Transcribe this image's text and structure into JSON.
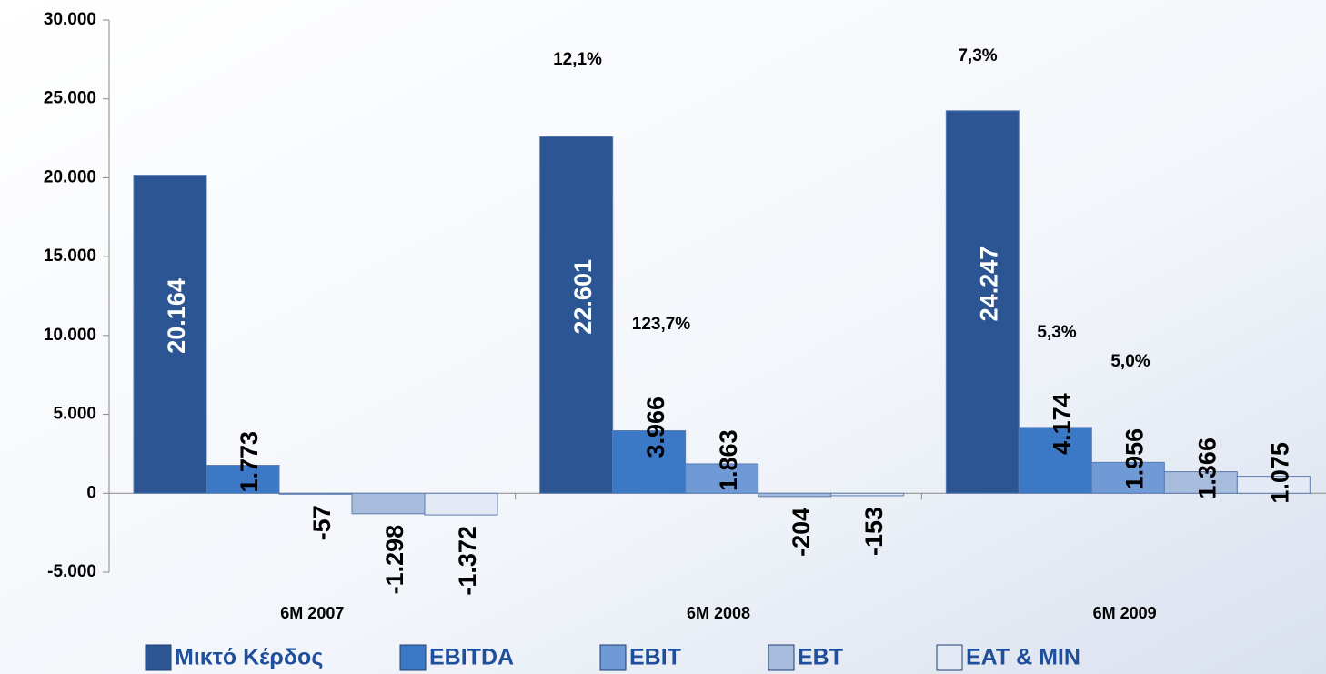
{
  "chart_data": {
    "type": "bar",
    "categories": [
      "6M 2007",
      "6M 2008",
      "6M 2009"
    ],
    "series": [
      {
        "name": "Μικτό Κέρδος",
        "color": "#2b5693",
        "values": [
          20164,
          22601,
          24247
        ],
        "value_labels": [
          "20.164",
          "22.601",
          "24.247"
        ]
      },
      {
        "name": "EBITDA",
        "color": "#3b79c6",
        "values": [
          1773,
          3966,
          4174
        ],
        "value_labels": [
          "1.773",
          "3.966",
          "4.174"
        ]
      },
      {
        "name": "EBIT",
        "color": "#6f9ad6",
        "values": [
          -57,
          1863,
          1956
        ],
        "value_labels": [
          "-57",
          "1.863",
          "1.956"
        ]
      },
      {
        "name": "EBT",
        "color": "#a8bddd",
        "values": [
          -1298,
          -204,
          1366
        ],
        "value_labels": [
          "-1.298",
          "-204",
          "1.366"
        ]
      },
      {
        "name": "EAT & MIN",
        "color": "#e3eaf5",
        "values": [
          -1372,
          -153,
          1075
        ],
        "value_labels": [
          "-1.372",
          "-153",
          "1.075"
        ]
      }
    ],
    "annotations": [
      "12,1%",
      "7,3%",
      "123,7%",
      "5,3%",
      "5,0%"
    ],
    "ylim": [
      -5000,
      30000
    ],
    "yticks": [
      {
        "value": -5000,
        "label": "-5.000"
      },
      0,
      {
        "value": 5000,
        "label": "5.000"
      },
      {
        "value": 10000,
        "label": "10.000"
      },
      {
        "value": 15000,
        "label": "15.000"
      },
      {
        "value": 20000,
        "label": "20.000"
      },
      {
        "value": 25000,
        "label": "25.000"
      },
      {
        "value": 30000,
        "label": "30.000"
      }
    ],
    "legend": "bottom"
  }
}
